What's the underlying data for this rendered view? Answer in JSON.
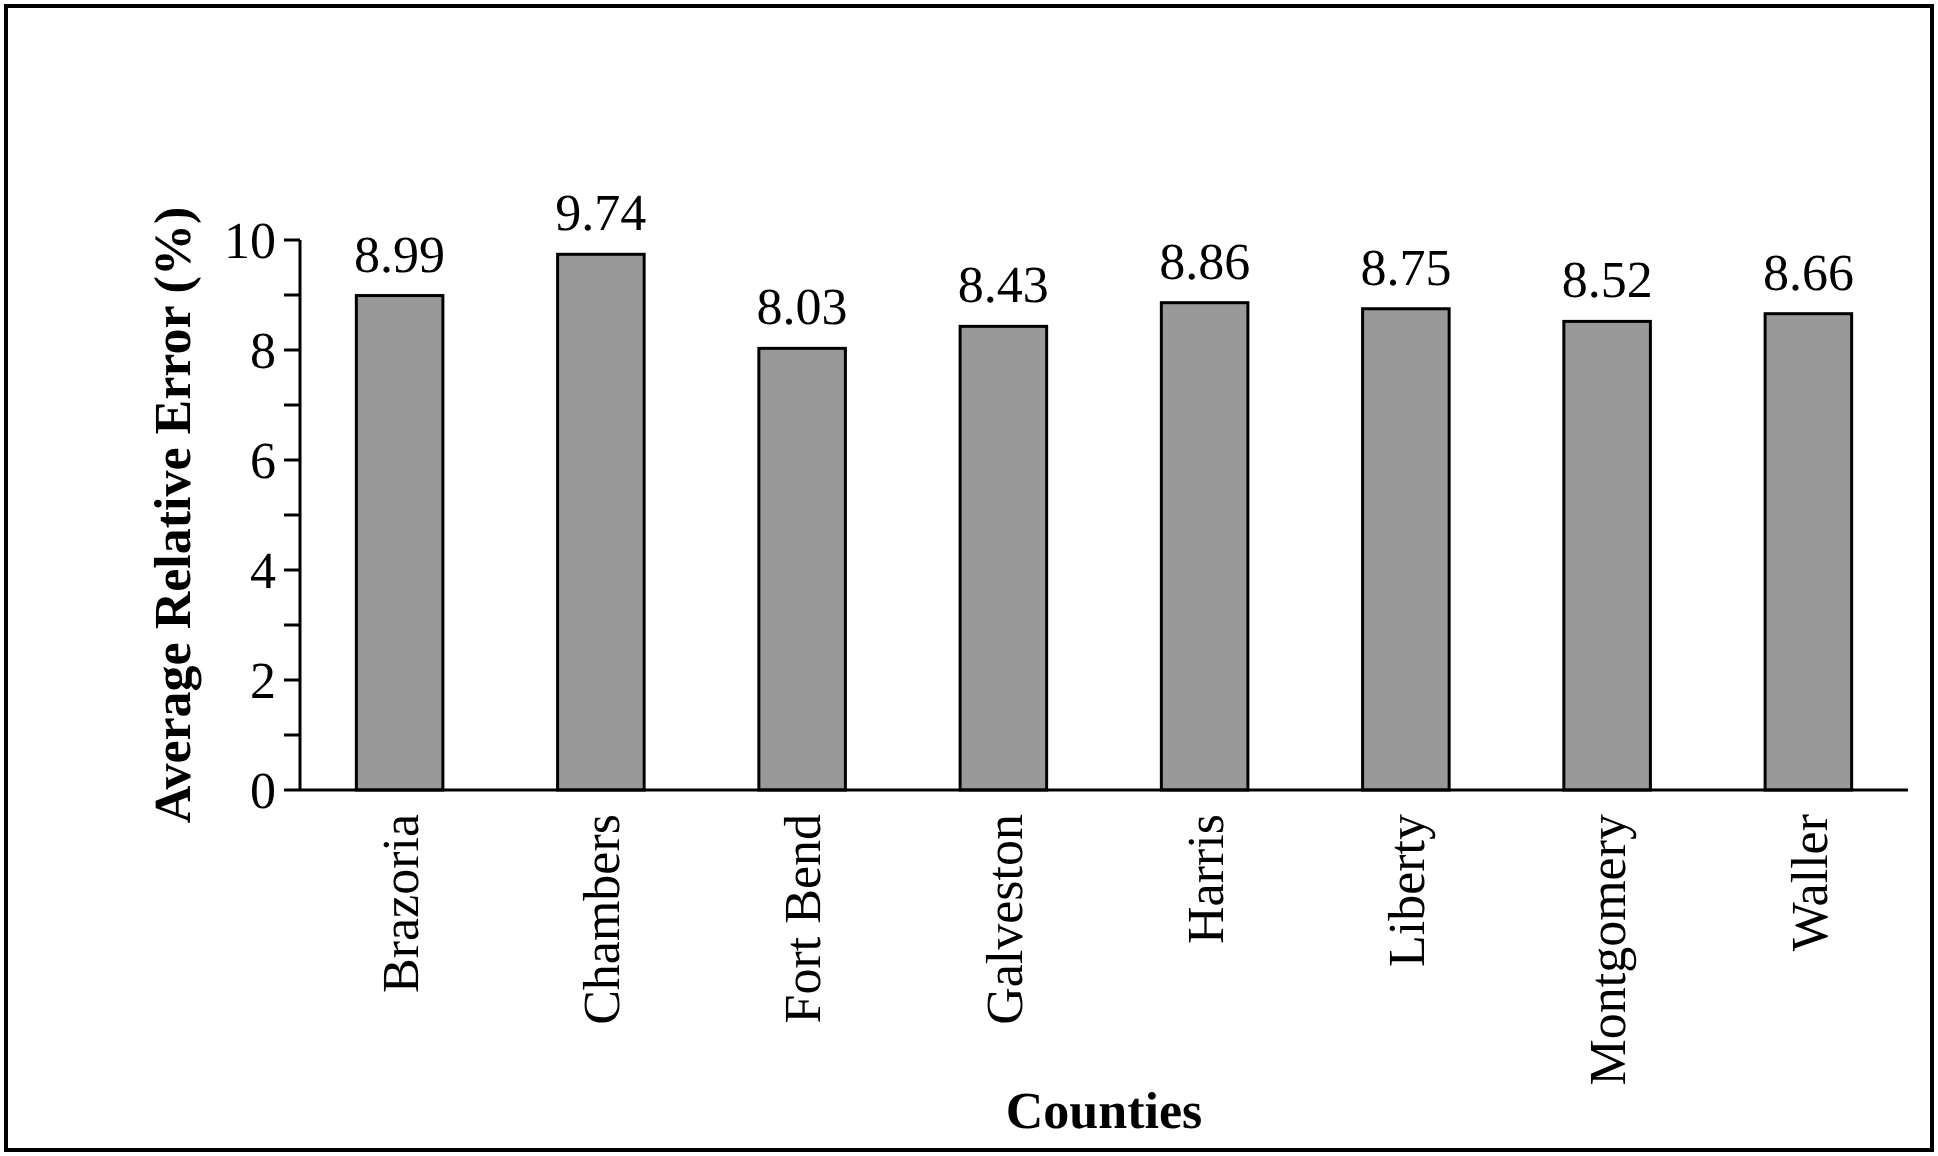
{
  "chart_data": {
    "type": "bar",
    "xlabel": "Counties",
    "ylabel": "Average Relative Error (%)",
    "categories": [
      "Brazoria",
      "Chambers",
      "Fort Bend",
      "Galveston",
      "Harris",
      "Liberty",
      "Montgomery",
      "Waller"
    ],
    "values": [
      8.99,
      9.74,
      8.03,
      8.43,
      8.86,
      8.75,
      8.52,
      8.66
    ],
    "color": "#999999",
    "ylim": [
      0,
      10
    ],
    "yticks": [
      0,
      {
        "value": 1,
        "label": null
      },
      2,
      {
        "value": 3,
        "label": null
      },
      4,
      {
        "value": 5,
        "label": null
      },
      6,
      {
        "value": 7,
        "label": null
      },
      8,
      {
        "value": 9,
        "label": null
      },
      10
    ],
    "data_labels": true
  }
}
